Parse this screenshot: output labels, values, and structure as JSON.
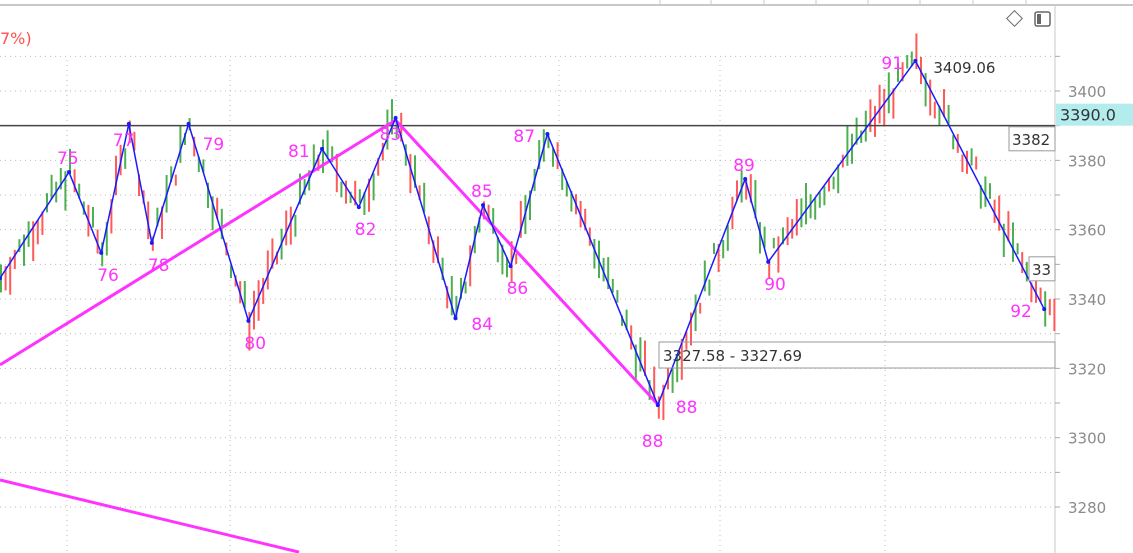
{
  "header": {
    "indicator_fragment": "7%)"
  },
  "toolbar": {
    "icons": [
      "diamond-icon",
      "panel-toggle-icon"
    ]
  },
  "chart_data": {
    "type": "ohlc-bar",
    "ylim": [
      3268,
      3418
    ],
    "y_ticks": [
      3280,
      3300,
      3320,
      3340,
      3360,
      3380,
      3400
    ],
    "grid": true,
    "colors": {
      "up": "#ff5a5a",
      "down": "#4caf50",
      "zigzag": "#1a1aff",
      "trend": "#ff33ff",
      "level": "#444444",
      "price_badge": "#b3ecec"
    },
    "current_price": "3390.0",
    "horizontal_level": 3390,
    "peak_label": "3409.06",
    "range_box_label": "3327.58 - 3327.69",
    "range_box_price": 3327.6,
    "price_tags": [
      {
        "text": "3382",
        "price": 3386.5
      },
      {
        "text": "33",
        "price": 3349
      }
    ],
    "zigzag": [
      {
        "x": 0,
        "y": 3346,
        "label": ""
      },
      {
        "x": 15,
        "y": 3376.6,
        "label": "75",
        "pos": "above"
      },
      {
        "x": 22,
        "y": 3353.3,
        "label": "76",
        "pos": "below"
      },
      {
        "x": 28,
        "y": 3390.5,
        "label": "77",
        "pos": "above-left"
      },
      {
        "x": 33,
        "y": 3356.2,
        "label": "78",
        "pos": "below"
      },
      {
        "x": 41,
        "y": 3390.5,
        "label": "79",
        "pos": "right"
      },
      {
        "x": 54,
        "y": 3333.7,
        "label": "80",
        "pos": "below"
      },
      {
        "x": 70,
        "y": 3383.3,
        "label": "81",
        "pos": "left"
      },
      {
        "x": 78,
        "y": 3366.5,
        "label": "82",
        "pos": "below"
      },
      {
        "x": 86,
        "y": 3392.2,
        "label": "83",
        "pos": "above-left"
      },
      {
        "x": 99,
        "y": 3334.5,
        "label": "84",
        "pos": "below-right"
      },
      {
        "x": 105,
        "y": 3367.1,
        "label": "85",
        "pos": "above"
      },
      {
        "x": 111,
        "y": 3349.5,
        "label": "86",
        "pos": "below"
      },
      {
        "x": 119,
        "y": 3387.6,
        "label": "87",
        "pos": "left"
      },
      {
        "x": 143,
        "y": 3309.4,
        "label": "88",
        "pos": "below-both"
      },
      {
        "x": 162,
        "y": 3374.6,
        "label": "89",
        "pos": "above"
      },
      {
        "x": 167,
        "y": 3350.7,
        "label": "90",
        "pos": "below"
      },
      {
        "x": 199,
        "y": 3408.7,
        "label": "91",
        "pos": "left"
      },
      {
        "x": 227,
        "y": 3337.1,
        "label": "92",
        "pos": "left"
      }
    ],
    "trend_lines": [
      {
        "from": [
          0,
          3321
        ],
        "to": [
          86,
          3391.6
        ]
      },
      {
        "from": [
          86,
          3391.6
        ],
        "to": [
          143,
          3309.6
        ]
      },
      {
        "from": [
          0,
          3287.8
        ],
        "to": [
          65,
          3267
        ]
      }
    ]
  }
}
